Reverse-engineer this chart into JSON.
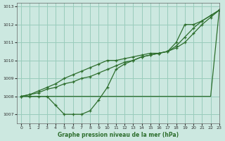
{
  "title": "Graphe pression niveau de la mer (hPa)",
  "bg_color": "#cce8e0",
  "grid_color": "#99ccbb",
  "line_color": "#2d6e2d",
  "xlim": [
    -0.5,
    23
  ],
  "ylim": [
    1006.5,
    1013.2
  ],
  "yticks": [
    1007,
    1008,
    1009,
    1010,
    1011,
    1012,
    1013
  ],
  "xticks": [
    0,
    1,
    2,
    3,
    4,
    5,
    6,
    7,
    8,
    9,
    10,
    11,
    12,
    13,
    14,
    15,
    16,
    17,
    18,
    19,
    20,
    21,
    22,
    23
  ],
  "series": [
    [
      1008.0,
      1008.0,
      1008.0,
      1008.0,
      1007.5,
      1007.0,
      1007.0,
      1007.0,
      1007.2,
      1007.8,
      1008.5,
      1009.5,
      1009.8,
      1010.0,
      1010.2,
      1010.3,
      1010.4,
      1010.5,
      1011.0,
      1012.0,
      1012.0,
      1012.2,
      1012.5,
      1012.8
    ],
    [
      1008.0,
      1008.0,
      1008.0,
      1008.0,
      1008.0,
      1008.0,
      1008.0,
      1008.0,
      1008.0,
      1008.0,
      1008.0,
      1008.0,
      1008.0,
      1008.0,
      1008.0,
      1008.0,
      1008.0,
      1008.0,
      1008.0,
      1008.0,
      1008.0,
      1008.0,
      1008.0,
      1012.8
    ],
    [
      1008.0,
      1008.1,
      1008.3,
      1008.5,
      1008.7,
      1009.0,
      1009.2,
      1009.4,
      1009.6,
      1009.8,
      1010.0,
      1010.0,
      1010.1,
      1010.2,
      1010.3,
      1010.4,
      1010.4,
      1010.5,
      1010.7,
      1011.0,
      1011.5,
      1012.0,
      1012.4,
      1012.8
    ],
    [
      1008.0,
      1008.1,
      1008.2,
      1008.4,
      1008.5,
      1008.7,
      1008.8,
      1009.0,
      1009.1,
      1009.3,
      1009.5,
      1009.7,
      1009.9,
      1010.0,
      1010.2,
      1010.3,
      1010.4,
      1010.5,
      1010.8,
      1011.3,
      1011.8,
      1012.2,
      1012.5,
      1012.8
    ]
  ]
}
